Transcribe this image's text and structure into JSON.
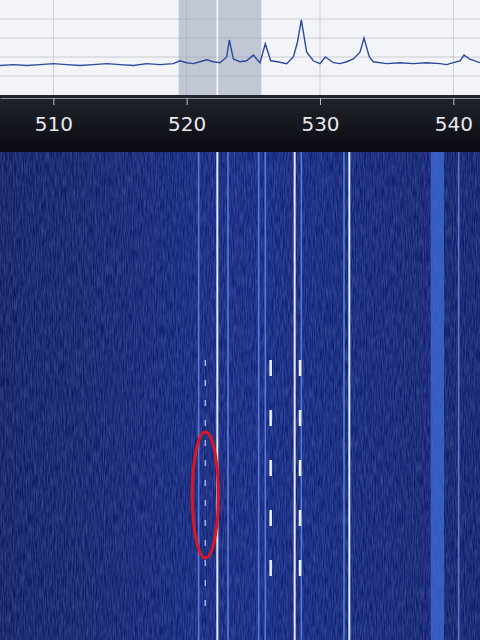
{
  "chart_data": {
    "type": "line",
    "x": [
      506,
      507,
      508,
      509,
      510,
      511,
      512,
      513,
      514,
      515,
      516,
      517,
      518,
      519,
      519.5,
      520,
      520.5,
      521,
      521.5,
      522,
      522.5,
      523,
      523.2,
      523.5,
      524,
      524.5,
      525,
      525.5,
      525.9,
      526.3,
      526.8,
      527.5,
      528,
      528.3,
      528.6,
      529,
      529.5,
      530,
      530.4,
      531,
      531.5,
      532,
      532.5,
      533,
      533.3,
      533.7,
      534,
      535,
      536,
      537,
      538,
      539,
      539.5,
      540,
      540.5,
      540.8,
      541.2,
      542
    ],
    "values": [
      31,
      32,
      31,
      32,
      33,
      32,
      31,
      32,
      33,
      32,
      31,
      33,
      32,
      33,
      36,
      34,
      33,
      35,
      37,
      35,
      34,
      40,
      58,
      38,
      35,
      36,
      42,
      34,
      54,
      36,
      35,
      33,
      40,
      55,
      79,
      45,
      36,
      33,
      40,
      34,
      33,
      35,
      38,
      45,
      60,
      40,
      35,
      33,
      34,
      33,
      34,
      33,
      32,
      34,
      36,
      42,
      38,
      34
    ],
    "color": "#2c4a9a",
    "xlim": [
      506,
      542
    ],
    "xticks": [
      510,
      520,
      530,
      540
    ],
    "ylim": [
      0,
      100
    ],
    "yticks": [
      20,
      40,
      60,
      80
    ],
    "grid": true,
    "tick_labels": "x",
    "highlight": {
      "range": [
        519.4,
        525.6
      ],
      "center": 522.3
    },
    "waterfall": {
      "strong_carriers": [
        522.3,
        528.1,
        532.2
      ],
      "weak_carriers": [
        520.9,
        523.1,
        525.4,
        525.9,
        528.6,
        531.8,
        540.4
      ],
      "wide_band": [
        538.3,
        539.3
      ],
      "intermittent": [
        521.4,
        526.3,
        528.5
      ]
    }
  }
}
